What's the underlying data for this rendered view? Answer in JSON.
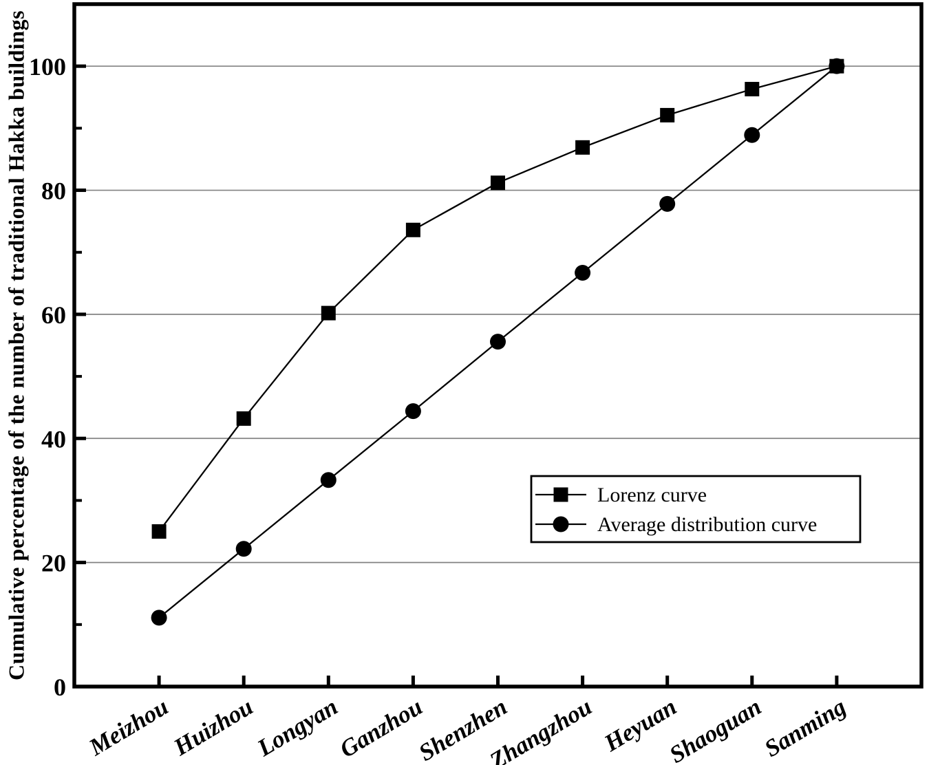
{
  "chart_data": {
    "type": "line",
    "title": "",
    "xlabel": "",
    "ylabel": "Cumulative percentage of the number of traditional Hakka buildings",
    "categories": [
      "Meizhou",
      "Huizhou",
      "Longyan",
      "Ganzhou",
      "Shenzhen",
      "Zhangzhou",
      "Heyuan",
      "Shaoguan",
      "Sanming"
    ],
    "series": [
      {
        "name": "Lorenz curve",
        "marker": "square",
        "values": [
          25.0,
          43.2,
          60.2,
          73.6,
          81.2,
          86.9,
          92.1,
          96.3,
          100.0
        ]
      },
      {
        "name": "Average distribution curve",
        "marker": "circle",
        "values": [
          11.1,
          22.2,
          33.3,
          44.4,
          55.6,
          66.7,
          77.8,
          88.9,
          100.0
        ]
      }
    ],
    "ylim": [
      0,
      110
    ],
    "yticks": [
      0,
      20,
      40,
      60,
      80,
      100
    ],
    "yticks_minor": [
      10,
      30,
      50,
      70,
      90
    ],
    "grid": "horizontal-major",
    "legend_position": "inside-middle-right",
    "colors": {
      "series": "#000000",
      "grid": "#828282",
      "frame": "#000000",
      "background": "#ffffff"
    }
  }
}
